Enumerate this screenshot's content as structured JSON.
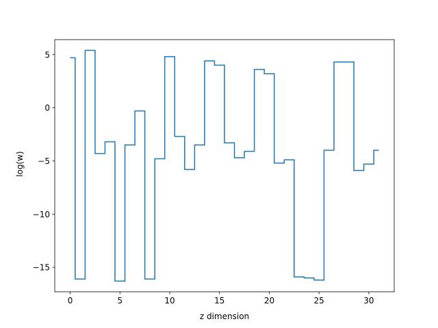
{
  "chart_data": {
    "type": "line",
    "drawstyle": "steps-mid",
    "title": "",
    "xlabel": "z dimension",
    "ylabel": "log(w)",
    "xlim": [
      -1.55,
      32.55
    ],
    "ylim": [
      -17.3,
      6.4
    ],
    "xticks": [
      0,
      5,
      10,
      15,
      20,
      25,
      30
    ],
    "xtick_labels": [
      "0",
      "5",
      "10",
      "15",
      "20",
      "25",
      "30"
    ],
    "yticks": [
      -15,
      -10,
      -5,
      0,
      5
    ],
    "ytick_labels": [
      "−15",
      "−10",
      "−5",
      "0",
      "5"
    ],
    "grid": false,
    "legend": "none",
    "series": [
      {
        "color": "#1f77b4",
        "x": [
          0,
          1,
          2,
          3,
          4,
          5,
          6,
          7,
          8,
          9,
          10,
          11,
          12,
          13,
          14,
          15,
          16,
          17,
          18,
          19,
          20,
          21,
          22,
          23,
          24,
          25,
          26,
          27,
          28,
          29,
          30,
          31
        ],
        "y": [
          4.7,
          -16.1,
          5.4,
          -4.3,
          -3.2,
          -16.3,
          -3.5,
          -0.3,
          -16.1,
          -4.8,
          4.8,
          -2.7,
          -5.8,
          -3.5,
          4.4,
          4.0,
          -3.3,
          -4.7,
          -4.1,
          3.6,
          3.2,
          -5.2,
          -4.9,
          -15.9,
          -16.0,
          -16.2,
          -4.0,
          4.3,
          4.3,
          -5.9,
          -5.3,
          -4.0
        ]
      }
    ]
  }
}
